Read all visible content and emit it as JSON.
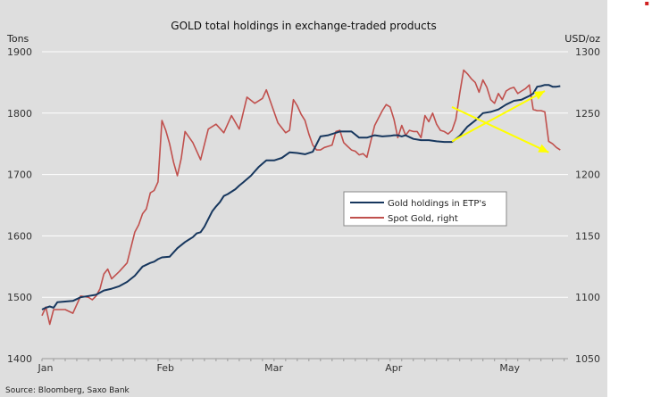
{
  "chart_data": {
    "type": "line",
    "title": "GOLD  total holdings  in exchange-traded products",
    "source": "Source: Bloomberg, Saxo Bank",
    "xlabel": "",
    "x_ticks": [
      {
        "label": "Jan",
        "pos": 0
      },
      {
        "label": "Feb",
        "pos": 31
      },
      {
        "label": "Mar",
        "pos": 59
      },
      {
        "label": "Apr",
        "pos": 90
      },
      {
        "label": "May",
        "pos": 120
      }
    ],
    "xlim": [
      0,
      136
    ],
    "left_axis": {
      "label": "Tons",
      "ylim": [
        1400,
        1900
      ],
      "ticks": [
        1400,
        1500,
        1600,
        1700,
        1800,
        1900
      ]
    },
    "right_axis": {
      "label": "USD/oz",
      "ylim": [
        1050,
        1300
      ],
      "ticks": [
        1050,
        1100,
        1150,
        1200,
        1250,
        1300
      ]
    },
    "legend": {
      "placement": "center-right",
      "entries": [
        "Gold holdings in ETP's",
        "Spot Gold, right"
      ]
    },
    "colors": {
      "holdings": "#17375e",
      "spot": "#c0504d",
      "arrows": "#ffff00",
      "background": "#dedede",
      "grid": "#ffffff"
    },
    "series": [
      {
        "name": "Gold holdings in ETP's",
        "axis": "left",
        "x": [
          0,
          1,
          2,
          3,
          4,
          6,
          8,
          10,
          12,
          14,
          16,
          18,
          20,
          22,
          24,
          26,
          28,
          29,
          30,
          31,
          33,
          35,
          37,
          38,
          39,
          40,
          41,
          42,
          44,
          45,
          46,
          47,
          48,
          50,
          51,
          52,
          54,
          56,
          58,
          60,
          62,
          64,
          66,
          68,
          70,
          72,
          74,
          75,
          77,
          78,
          80,
          82,
          84,
          85,
          86,
          88,
          90,
          91,
          92,
          93,
          94,
          96,
          98,
          100,
          102,
          104,
          106,
          108,
          110,
          112,
          114,
          116,
          118,
          120,
          122,
          124,
          126,
          127,
          128,
          129,
          130,
          131,
          132,
          133,
          134
        ],
        "values": [
          1480,
          1483,
          1485,
          1483,
          1492,
          1493,
          1494,
          1500,
          1502,
          1504,
          1511,
          1514,
          1518,
          1525,
          1535,
          1550,
          1556,
          1558,
          1562,
          1565,
          1566,
          1580,
          1590,
          1594,
          1598,
          1604,
          1606,
          1615,
          1640,
          1648,
          1655,
          1665,
          1668,
          1676,
          1682,
          1687,
          1698,
          1712,
          1723,
          1723,
          1727,
          1736,
          1735,
          1733,
          1737,
          1762,
          1764,
          1766,
          1770,
          1770,
          1770,
          1760,
          1760,
          1762,
          1764,
          1762,
          1763,
          1764,
          1764,
          1762,
          1764,
          1758,
          1756,
          1756,
          1754,
          1753,
          1753,
          1763,
          1778,
          1788,
          1800,
          1802,
          1806,
          1814,
          1820,
          1822,
          1828,
          1832,
          1843,
          1844,
          1846,
          1846,
          1843,
          1843,
          1844
        ]
      },
      {
        "name": "Spot Gold, right",
        "axis": "right",
        "x": [
          0,
          1,
          2,
          3,
          4,
          5,
          6,
          8,
          10,
          12,
          13,
          14,
          15,
          16,
          17,
          18,
          19,
          20,
          22,
          24,
          25,
          26,
          27,
          28,
          29,
          30,
          31,
          32,
          33,
          34,
          35,
          36,
          37,
          39,
          41,
          43,
          45,
          47,
          49,
          51,
          53,
          55,
          57,
          58,
          59,
          61,
          63,
          64,
          65,
          66,
          67,
          68,
          69,
          70,
          71,
          72,
          73,
          74,
          75,
          76,
          77,
          78,
          79,
          80,
          81,
          82,
          83,
          84,
          85,
          86,
          87,
          88,
          89,
          90,
          91,
          92,
          93,
          94,
          95,
          96,
          97,
          98,
          99,
          100,
          101,
          102,
          103,
          104,
          105,
          106,
          107,
          108,
          109,
          110,
          111,
          112,
          113,
          114,
          115,
          116,
          117,
          118,
          119,
          120,
          121,
          122,
          123,
          124,
          125,
          126,
          127,
          128,
          129,
          130,
          131,
          132,
          133,
          134
        ],
        "values": [
          1085,
          1092,
          1078,
          1090,
          1090,
          1090,
          1090,
          1087,
          1101,
          1100,
          1098,
          1101,
          1107,
          1119,
          1123,
          1115,
          1118,
          1121,
          1128,
          1153,
          1159,
          1168,
          1172,
          1185,
          1187,
          1194,
          1244,
          1236,
          1225,
          1210,
          1199,
          1213,
          1235,
          1226,
          1212,
          1237,
          1241,
          1234,
          1248,
          1237,
          1263,
          1258,
          1262,
          1269,
          1260,
          1242,
          1234,
          1236,
          1261,
          1256,
          1249,
          1244,
          1233,
          1224,
          1220,
          1220,
          1222,
          1223,
          1224,
          1235,
          1236,
          1226,
          1223,
          1220,
          1219,
          1216,
          1217,
          1214,
          1227,
          1240,
          1246,
          1252,
          1257,
          1255,
          1245,
          1230,
          1240,
          1232,
          1236,
          1235,
          1235,
          1230,
          1248,
          1243,
          1250,
          1241,
          1236,
          1235,
          1233,
          1236,
          1245,
          1266,
          1285,
          1282,
          1278,
          1275,
          1267,
          1277,
          1271,
          1261,
          1258,
          1266,
          1261,
          1268,
          1270,
          1271,
          1266,
          1268,
          1270,
          1273,
          1253,
          1252,
          1252,
          1251,
          1227,
          1225,
          1222,
          1220
        ]
      }
    ],
    "annotations": [
      {
        "type": "arrow",
        "from": [
          106,
          1255
        ],
        "to": [
          131,
          1218
        ],
        "axis": "right"
      },
      {
        "type": "arrow",
        "from": [
          106,
          1227
        ],
        "to": [
          130,
          1268
        ],
        "axis": "right"
      }
    ]
  }
}
